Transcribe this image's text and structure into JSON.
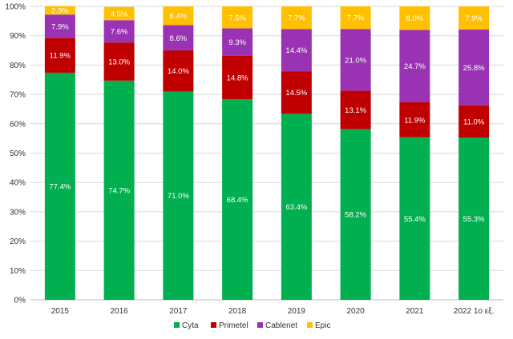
{
  "chart_data": {
    "type": "bar",
    "stacked": true,
    "title": "",
    "xlabel": "",
    "ylabel": "",
    "ylim": [
      0,
      100
    ],
    "y_ticks": [
      "0%",
      "10%",
      "20%",
      "30%",
      "40%",
      "50%",
      "60%",
      "70%",
      "80%",
      "90%",
      "100%"
    ],
    "grid": true,
    "legend_position": "bottom",
    "categories": [
      "2015",
      "2016",
      "2017",
      "2018",
      "2019",
      "2020",
      "2021",
      "2022 1ο εξ."
    ],
    "series": [
      {
        "name": "Cyta",
        "color": "#00b050",
        "values": [
          77.4,
          74.7,
          71.0,
          68.4,
          63.4,
          58.2,
          55.4,
          55.3
        ],
        "labels": [
          "77.4%",
          "74.7%",
          "71.0%",
          "68.4%",
          "63.4%",
          "58.2%",
          "55.4%",
          "55.3%"
        ]
      },
      {
        "name": "Primetel",
        "color": "#c00000",
        "values": [
          11.9,
          13.0,
          14.0,
          14.8,
          14.5,
          13.1,
          11.9,
          11.0
        ],
        "labels": [
          "11.9%",
          "13.0%",
          "14.0%",
          "14.8%",
          "14.5%",
          "13.1%",
          "11.9%",
          "11.0%"
        ]
      },
      {
        "name": "Cablenet",
        "color": "#9933b3",
        "values": [
          7.9,
          7.6,
          8.6,
          9.3,
          14.4,
          21.0,
          24.7,
          25.8
        ],
        "labels": [
          "7.9%",
          "7.6%",
          "8.6%",
          "9.3%",
          "14.4%",
          "21.0%",
          "24.7%",
          "25.8%"
        ]
      },
      {
        "name": "Epic",
        "color": "#ffc000",
        "values": [
          2.9,
          4.5,
          6.4,
          7.5,
          7.7,
          7.7,
          8.0,
          7.9
        ],
        "labels": [
          "2.9%",
          "4.5%",
          "6.4%",
          "7.5%",
          "7.7%",
          "7.7%",
          "8.0%",
          "7.9%"
        ]
      }
    ]
  }
}
